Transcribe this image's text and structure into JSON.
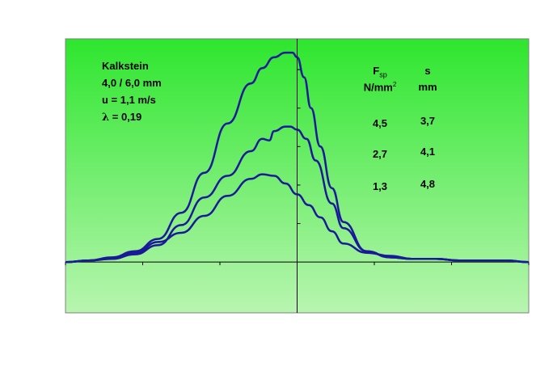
{
  "chart_data": {
    "type": "line",
    "title": "",
    "xlabel": "",
    "ylabel": "",
    "grid": false,
    "legend": "none",
    "plot_background": {
      "top": "#2ee62e",
      "bottom": "#b8f5b0"
    },
    "line_color": "#1a1a99",
    "x_range": [
      -1,
      1
    ],
    "y_range": [
      -0.33,
      1.45
    ],
    "annotations": {
      "material": {
        "name": "Kalkstein",
        "size": "4,0 / 6,0 mm",
        "speed": "u = 1,1 m/s",
        "lambda_symbol": "λ",
        "lambda_rest": " = 0,19"
      },
      "table": {
        "col1_head_main": "F",
        "col1_head_sub": "sp",
        "col1_unit_main": "N/mm",
        "col1_unit_sup": "2",
        "col2_head": "s",
        "col2_unit": "mm",
        "rows": [
          {
            "f": "4,5",
            "s": "3,7"
          },
          {
            "f": "2,7",
            "s": "4,1"
          },
          {
            "f": "1,3",
            "s": "4,8"
          }
        ]
      }
    },
    "series": [
      {
        "x": [
          -1.0,
          -0.9,
          -0.8,
          -0.7,
          -0.6,
          -0.5,
          -0.4,
          -0.3,
          -0.2,
          -0.15,
          -0.1,
          -0.05,
          -0.02,
          0.0,
          0.03,
          0.06,
          0.1,
          0.15,
          0.2,
          0.3,
          0.4,
          0.5,
          0.6,
          0.7,
          0.8,
          0.9,
          1.0
        ],
        "y": [
          0.0,
          0.01,
          0.03,
          0.07,
          0.15,
          0.32,
          0.58,
          0.9,
          1.16,
          1.26,
          1.33,
          1.36,
          1.36,
          1.33,
          1.2,
          1.0,
          0.75,
          0.48,
          0.26,
          0.07,
          0.03,
          0.02,
          0.02,
          0.01,
          0.01,
          0.01,
          0.0
        ]
      },
      {
        "x": [
          -1.0,
          -0.9,
          -0.8,
          -0.7,
          -0.6,
          -0.5,
          -0.4,
          -0.3,
          -0.2,
          -0.15,
          -0.12,
          -0.1,
          -0.05,
          -0.03,
          0.0,
          0.04,
          0.08,
          0.15,
          0.2,
          0.3,
          0.4,
          0.5,
          0.6,
          0.7,
          0.8,
          0.9,
          1.0
        ],
        "y": [
          0.0,
          0.01,
          0.02,
          0.05,
          0.11,
          0.24,
          0.42,
          0.56,
          0.72,
          0.8,
          0.79,
          0.85,
          0.88,
          0.88,
          0.86,
          0.8,
          0.66,
          0.38,
          0.22,
          0.07,
          0.03,
          0.02,
          0.02,
          0.01,
          0.01,
          0.01,
          0.0
        ]
      },
      {
        "x": [
          -1.0,
          -0.9,
          -0.8,
          -0.7,
          -0.6,
          -0.5,
          -0.4,
          -0.3,
          -0.2,
          -0.15,
          -0.1,
          -0.05,
          0.0,
          0.05,
          0.1,
          0.15,
          0.2,
          0.3,
          0.4,
          0.5,
          0.6,
          0.7,
          0.8,
          0.9,
          1.0
        ],
        "y": [
          0.0,
          0.01,
          0.02,
          0.06,
          0.13,
          0.19,
          0.3,
          0.43,
          0.54,
          0.57,
          0.56,
          0.51,
          0.44,
          0.37,
          0.29,
          0.2,
          0.12,
          0.06,
          0.04,
          0.02,
          0.02,
          0.01,
          0.01,
          0.01,
          0.0
        ]
      }
    ]
  }
}
